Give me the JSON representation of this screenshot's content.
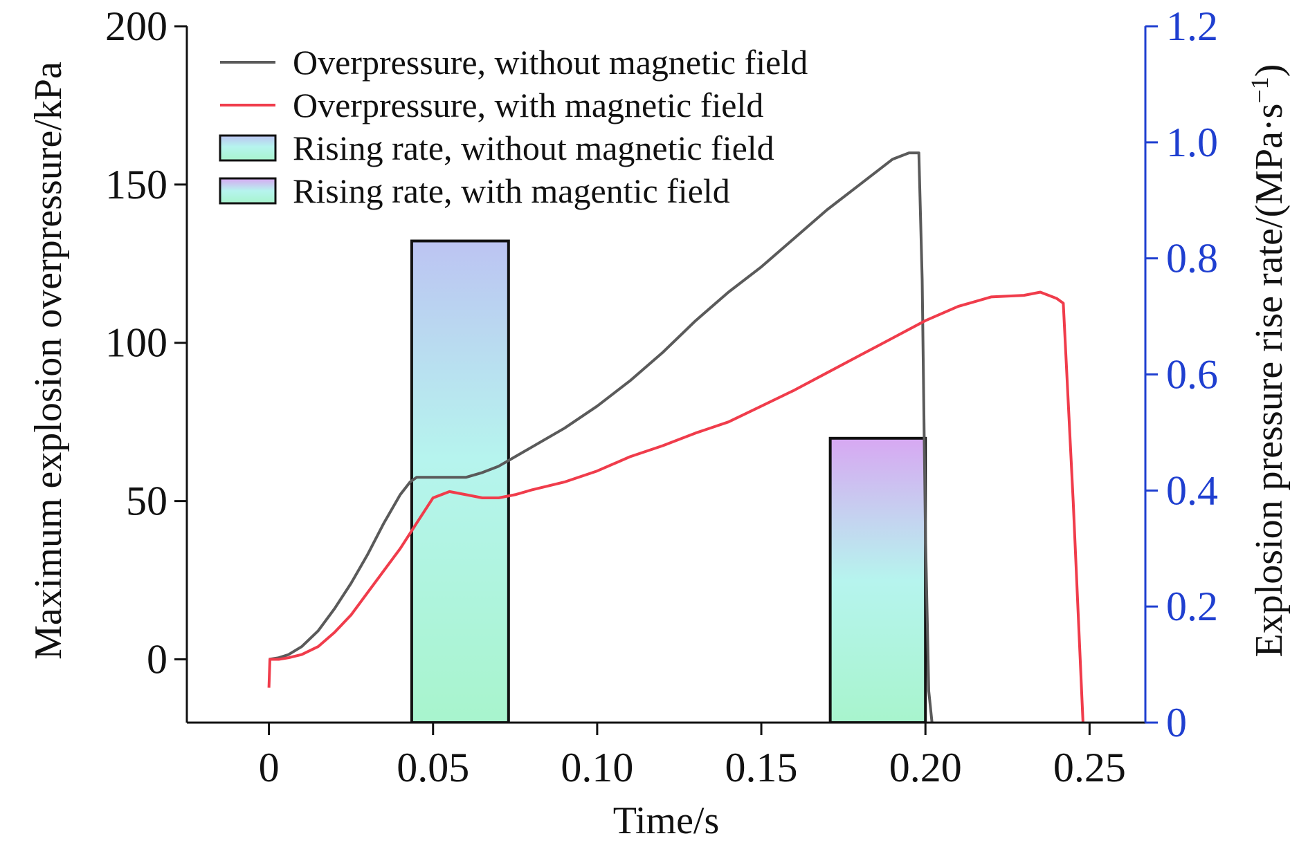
{
  "chart_data": {
    "type": "line",
    "title": "",
    "xlabel": "Time/s",
    "ylabel": "Maximum explosion overpressure/kPa",
    "y2label_main": "Explosion pressure rise rate/(MPa·s",
    "y2label_sup": "−1",
    "y2label_close": ")",
    "xlim": [
      -0.025,
      0.267
    ],
    "ylim": [
      -20,
      200
    ],
    "y2lim": [
      0,
      1.2
    ],
    "x_ticks": [
      0,
      0.05,
      0.1,
      0.15,
      0.2,
      0.25
    ],
    "x_tick_labels": [
      "0",
      "0.05",
      "0.10",
      "0.15",
      "0.20",
      "0.25"
    ],
    "y_ticks": [
      0,
      50,
      100,
      150,
      200
    ],
    "y_tick_labels": [
      "0",
      "50",
      "100",
      "150",
      "200"
    ],
    "y2_ticks": [
      0,
      0.2,
      0.4,
      0.6,
      0.8,
      1.0,
      1.2
    ],
    "y2_tick_labels": [
      "0",
      "0.2",
      "0.4",
      "0.6",
      "0.8",
      "1.0",
      "1.2"
    ],
    "grid": false,
    "legend_position": "top-left",
    "colors": {
      "without_line": "#5a5a5a",
      "with_line": "#f03c4b",
      "right_axis": "#1f3fd0",
      "right_axis_text": "#1f3fd0",
      "bar_without_top": "#bcc4f2",
      "bar_without_mid": "#b6f4ee",
      "bar_without_bottom": "#a8f4cd",
      "bar_with_top": "#d7a8f2",
      "bar_with_mid": "#b6f4ee",
      "bar_with_bottom": "#a8f4cd"
    },
    "series": [
      {
        "name": "Overpressure, without magnetic field",
        "kind": "line",
        "axis": "left",
        "x": [
          0,
          0.003,
          0.006,
          0.01,
          0.015,
          0.02,
          0.025,
          0.03,
          0.035,
          0.04,
          0.043,
          0.045,
          0.05,
          0.055,
          0.06,
          0.065,
          0.07,
          0.075,
          0.08,
          0.09,
          0.1,
          0.11,
          0.12,
          0.13,
          0.14,
          0.15,
          0.16,
          0.17,
          0.18,
          0.19,
          0.195,
          0.198,
          0.199,
          0.2,
          0.201,
          0.202
        ],
        "y": [
          0,
          0.5,
          1.5,
          4,
          9,
          16,
          24,
          33,
          43,
          52,
          56,
          57.5,
          57.5,
          57.5,
          57.5,
          59,
          61,
          64,
          67,
          73,
          80,
          88,
          97,
          107,
          116,
          124,
          133,
          142,
          150,
          158,
          160,
          160,
          120,
          40,
          -10,
          -20
        ]
      },
      {
        "name": "Overpressure, with magnetic field",
        "kind": "line",
        "axis": "left",
        "x": [
          0,
          0.0003,
          0.003,
          0.006,
          0.01,
          0.015,
          0.02,
          0.025,
          0.03,
          0.035,
          0.04,
          0.045,
          0.05,
          0.055,
          0.06,
          0.065,
          0.07,
          0.075,
          0.08,
          0.09,
          0.1,
          0.11,
          0.12,
          0.13,
          0.14,
          0.15,
          0.16,
          0.17,
          0.18,
          0.19,
          0.2,
          0.21,
          0.22,
          0.23,
          0.235,
          0.24,
          0.242,
          0.245,
          0.248
        ],
        "y": [
          -9,
          0,
          0,
          0.5,
          1.5,
          4,
          8.5,
          14,
          21,
          28,
          35,
          43,
          51,
          53,
          52,
          51,
          51,
          52,
          53.5,
          56,
          59.5,
          64,
          67.5,
          71.5,
          75,
          80,
          85,
          90.5,
          96,
          101.5,
          107,
          111.5,
          114.5,
          115,
          116,
          114,
          112.5,
          50,
          -20
        ]
      },
      {
        "name": "Rising rate, without magnetic field",
        "kind": "bar",
        "axis": "right",
        "x_start": 0.0435,
        "x_end": 0.073,
        "value": 0.83
      },
      {
        "name": "Rising rate, with magentic field",
        "kind": "bar",
        "axis": "right",
        "x_start": 0.171,
        "x_end": 0.2,
        "value": 0.49
      }
    ]
  }
}
